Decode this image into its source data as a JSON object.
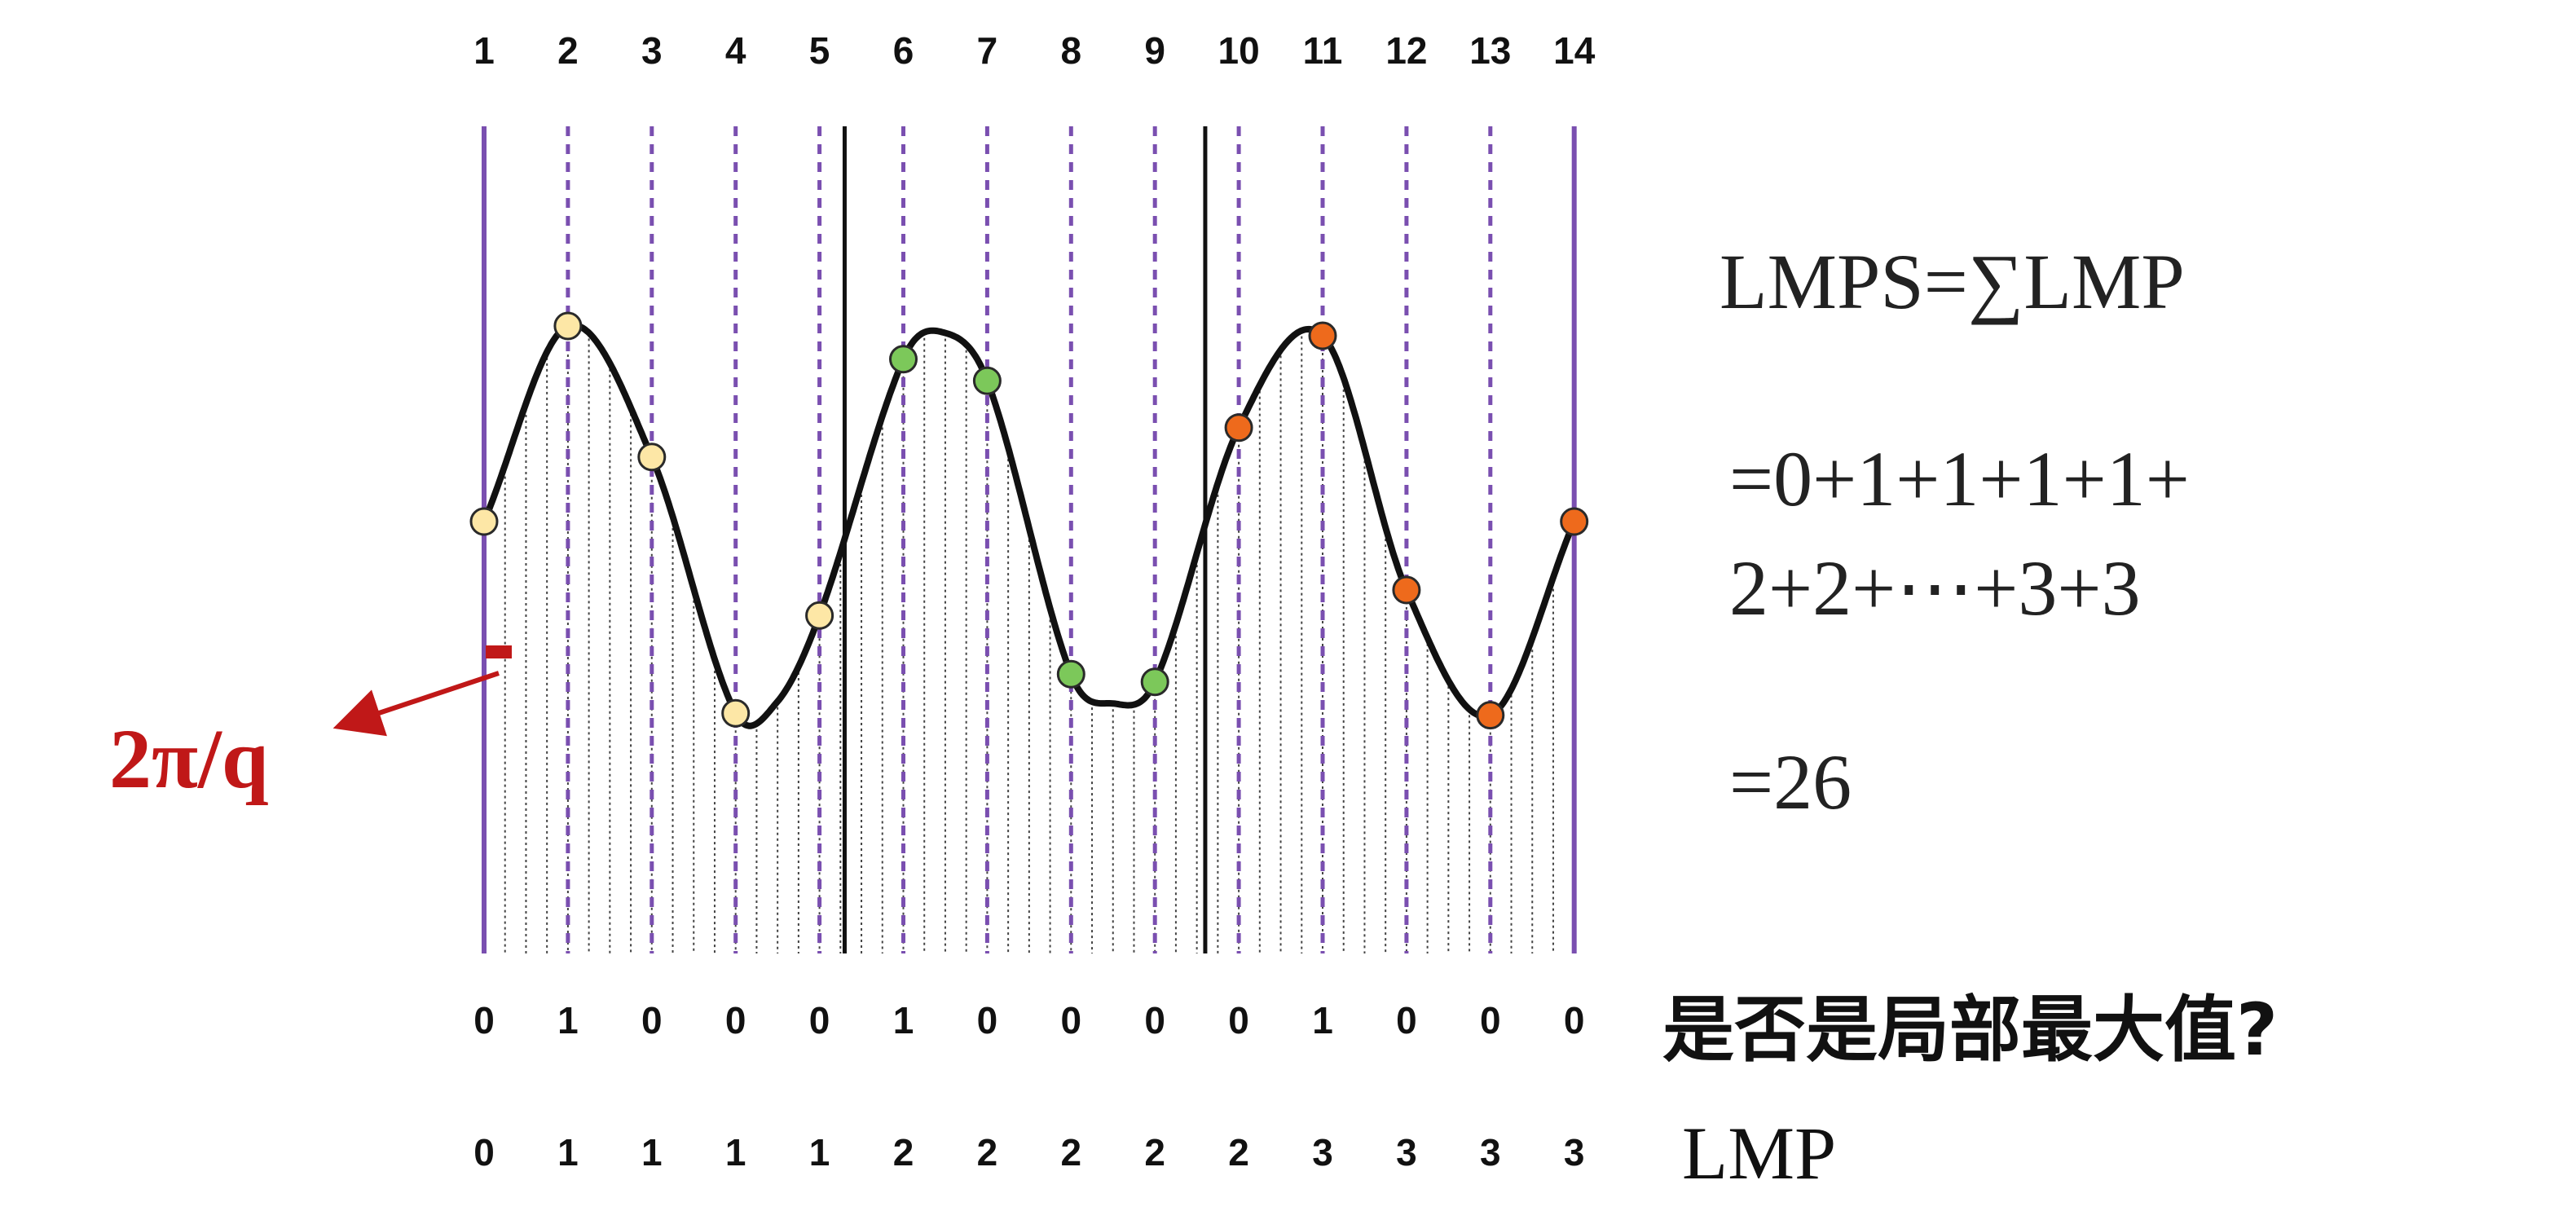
{
  "colors": {
    "accent_purple": "#7a4fb0",
    "boundary_black": "#111111",
    "curve": "#111111",
    "hatch": "#444444",
    "arrow_red": "#c01818",
    "dot_group1": "#fde7a6",
    "dot_group2": "#7cc85a",
    "dot_group3": "#ee6a1c",
    "dot_stroke": "#2a2a2a"
  },
  "diagram": {
    "points": [
      {
        "index": "1",
        "curve_value": 0.0,
        "is_local_max": "0",
        "lmp": "0",
        "group": 1,
        "highlight": false
      },
      {
        "index": "2",
        "curve_value": 1.0,
        "is_local_max": "1",
        "lmp": "1",
        "group": 1,
        "highlight": true
      },
      {
        "index": "3",
        "curve_value": 0.33,
        "is_local_max": "0",
        "lmp": "1",
        "group": 1,
        "highlight": false
      },
      {
        "index": "4",
        "curve_value": -0.98,
        "is_local_max": "0",
        "lmp": "1",
        "group": 1,
        "highlight": false
      },
      {
        "index": "5",
        "curve_value": -0.48,
        "is_local_max": "0",
        "lmp": "1",
        "group": 1,
        "highlight": false
      },
      {
        "index": "6",
        "curve_value": 0.83,
        "is_local_max": "1",
        "lmp": "2",
        "group": 2,
        "highlight": true
      },
      {
        "index": "7",
        "curve_value": 0.72,
        "is_local_max": "0",
        "lmp": "2",
        "group": 2,
        "highlight": false
      },
      {
        "index": "8",
        "curve_value": -0.78,
        "is_local_max": "0",
        "lmp": "2",
        "group": 2,
        "highlight": false
      },
      {
        "index": "9",
        "curve_value": -0.82,
        "is_local_max": "0",
        "lmp": "2",
        "group": 2,
        "highlight": false
      },
      {
        "index": "10",
        "curve_value": 0.48,
        "is_local_max": "0",
        "lmp": "2",
        "group": 3,
        "highlight": false
      },
      {
        "index": "11",
        "curve_value": 0.95,
        "is_local_max": "1",
        "lmp": "3",
        "group": 3,
        "highlight": true
      },
      {
        "index": "12",
        "curve_value": -0.35,
        "is_local_max": "0",
        "lmp": "3",
        "group": 3,
        "highlight": false
      },
      {
        "index": "13",
        "curve_value": -0.99,
        "is_local_max": "0",
        "lmp": "3",
        "group": 3,
        "highlight": false
      },
      {
        "index": "14",
        "curve_value": 0.0,
        "is_local_max": "0",
        "lmp": "3",
        "group": 3,
        "highlight": false
      }
    ],
    "last_index_highlight": true,
    "curve_keypoints": [
      {
        "pos": 1.0,
        "value": 0.0
      },
      {
        "pos": 2.0,
        "value": 1.0
      },
      {
        "pos": 3.0,
        "value": 0.33
      },
      {
        "pos": 4.0,
        "value": -0.98
      },
      {
        "pos": 4.5,
        "value": -0.92
      },
      {
        "pos": 5.0,
        "value": -0.48
      },
      {
        "pos": 6.0,
        "value": 0.83
      },
      {
        "pos": 6.45,
        "value": 0.97
      },
      {
        "pos": 7.0,
        "value": 0.72
      },
      {
        "pos": 8.0,
        "value": -0.78
      },
      {
        "pos": 8.5,
        "value": -0.93
      },
      {
        "pos": 9.0,
        "value": -0.82
      },
      {
        "pos": 10.0,
        "value": 0.48
      },
      {
        "pos": 11.0,
        "value": 0.95
      },
      {
        "pos": 12.0,
        "value": -0.35
      },
      {
        "pos": 13.0,
        "value": -0.99
      },
      {
        "pos": 14.0,
        "value": 0.0
      }
    ],
    "segment_boundaries": [
      5.3,
      9.6
    ]
  },
  "annotation": {
    "period_label": "2π/q"
  },
  "formula": {
    "line1": "LMPS=∑LMP",
    "line2": "=0+1+1+1+1+",
    "line3": "2+2+⋯+3+3",
    "line4": "=26"
  },
  "row_labels": {
    "question": "是否是局部最大值?",
    "lmp": "LMP"
  }
}
